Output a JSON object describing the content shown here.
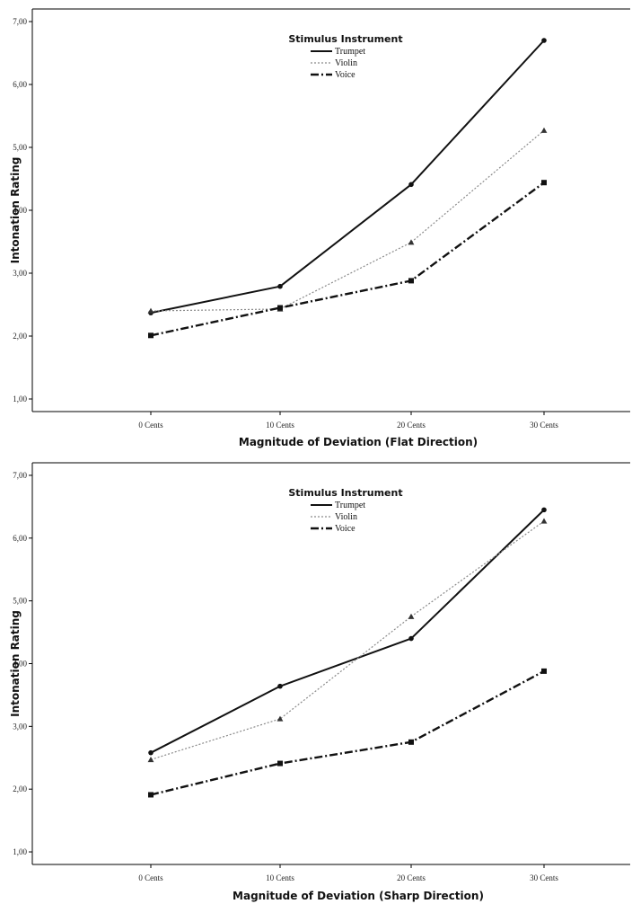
{
  "chart_data": [
    {
      "type": "line",
      "xlabel": "Magnitude of Deviation (Flat Direction)",
      "ylabel": "Intonation Rating",
      "ylim": [
        0.8,
        7.2
      ],
      "yticks": [
        "1,00",
        "2,00",
        "3,00",
        "4,00",
        "5,00",
        "6,00",
        "7,00"
      ],
      "categories": [
        "0 Cents",
        "10 Cents",
        "20 Cents",
        "30 Cents"
      ],
      "legend_title": "Stimulus Instrument",
      "legend_position": "top-center",
      "grid": false,
      "series": [
        {
          "name": "Trumpet",
          "values": [
            2.37,
            2.79,
            4.41,
            6.7
          ],
          "color": "#111111",
          "dash": "solid",
          "marker": "circle"
        },
        {
          "name": "Violin",
          "values": [
            2.4,
            2.43,
            3.49,
            5.27
          ],
          "color": "#8a8a8a",
          "dash": "dotted",
          "marker": "triangle"
        },
        {
          "name": "Voice",
          "values": [
            2.01,
            2.45,
            2.88,
            4.44
          ],
          "color": "#111111",
          "dash": "dashdot",
          "marker": "square"
        }
      ]
    },
    {
      "type": "line",
      "xlabel": "Magnitude of Deviation (Sharp Direction)",
      "ylabel": "Intonation Rating",
      "ylim": [
        0.8,
        7.2
      ],
      "yticks": [
        "1,00",
        "2,00",
        "3,00",
        "4,00",
        "5,00",
        "6,00",
        "7,00"
      ],
      "categories": [
        "0 Cents",
        "10 Cents",
        "20 Cents",
        "30 Cents"
      ],
      "legend_title": "Stimulus Instrument",
      "legend_position": "top-center",
      "grid": false,
      "series": [
        {
          "name": "Trumpet",
          "values": [
            2.58,
            3.64,
            4.4,
            6.45
          ],
          "color": "#111111",
          "dash": "solid",
          "marker": "circle"
        },
        {
          "name": "Violin",
          "values": [
            2.47,
            3.12,
            4.75,
            6.27
          ],
          "color": "#8a8a8a",
          "dash": "dotted",
          "marker": "triangle"
        },
        {
          "name": "Voice",
          "values": [
            1.91,
            2.41,
            2.75,
            3.88
          ],
          "color": "#111111",
          "dash": "dashdot",
          "marker": "square"
        }
      ]
    }
  ]
}
